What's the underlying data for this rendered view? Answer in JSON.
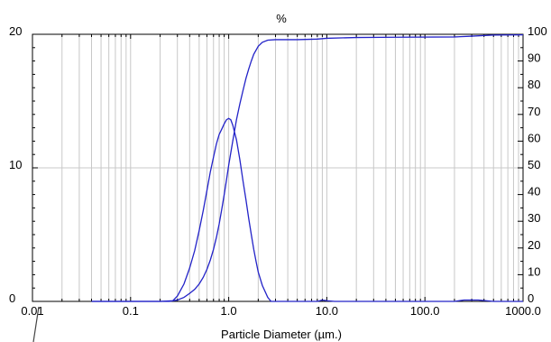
{
  "chart_data": {
    "type": "line",
    "title": "",
    "xlabel": "Particle Diameter (µm.)",
    "ylabel": "",
    "y2label": "%",
    "x_scale": "log",
    "xlim": [
      0.01,
      1000
    ],
    "ylim": [
      0,
      20
    ],
    "y2lim": [
      0,
      100
    ],
    "grid": true,
    "x_tick_labels": [
      "0.01",
      "0.1",
      "1.0",
      "10.0",
      "100.0",
      "1000.0"
    ],
    "y_tick_labels": [
      "0",
      "10",
      "20"
    ],
    "y2_tick_labels": [
      "0",
      "10",
      "20",
      "30",
      "40",
      "50",
      "60",
      "70",
      "80",
      "90",
      "100"
    ],
    "series_color": "#2323c8",
    "series": [
      {
        "axis": "left",
        "points": [
          [
            0.04,
            0
          ],
          [
            0.1,
            0
          ],
          [
            0.2,
            0
          ],
          [
            0.27,
            0.05
          ],
          [
            0.3,
            0.4
          ],
          [
            0.35,
            1.3
          ],
          [
            0.4,
            2.5
          ],
          [
            0.45,
            3.8
          ],
          [
            0.5,
            5.3
          ],
          [
            0.55,
            6.8
          ],
          [
            0.6,
            8.3
          ],
          [
            0.65,
            9.7
          ],
          [
            0.7,
            10.8
          ],
          [
            0.75,
            11.8
          ],
          [
            0.8,
            12.5
          ],
          [
            0.85,
            12.9
          ],
          [
            0.9,
            13.3
          ],
          [
            0.95,
            13.6
          ],
          [
            1.0,
            13.7
          ],
          [
            1.05,
            13.6
          ],
          [
            1.1,
            13.2
          ],
          [
            1.2,
            12.1
          ],
          [
            1.3,
            10.6
          ],
          [
            1.4,
            9.0
          ],
          [
            1.5,
            7.6
          ],
          [
            1.6,
            6.2
          ],
          [
            1.7,
            5.0
          ],
          [
            1.8,
            3.9
          ],
          [
            1.9,
            3.0
          ],
          [
            2.0,
            2.2
          ],
          [
            2.2,
            1.2
          ],
          [
            2.5,
            0.3
          ],
          [
            2.7,
            0
          ],
          [
            8,
            0
          ],
          [
            9,
            0.1
          ],
          [
            10,
            0.05
          ],
          [
            12,
            0
          ],
          [
            200,
            0
          ],
          [
            250,
            0.1
          ],
          [
            350,
            0.1
          ],
          [
            500,
            0
          ],
          [
            1000,
            0
          ]
        ]
      },
      {
        "axis": "right",
        "points": [
          [
            0.04,
            0
          ],
          [
            0.1,
            0
          ],
          [
            0.25,
            0
          ],
          [
            0.3,
            0.5
          ],
          [
            0.35,
            1.5
          ],
          [
            0.4,
            3.0
          ],
          [
            0.45,
            4.5
          ],
          [
            0.5,
            6.5
          ],
          [
            0.55,
            9.0
          ],
          [
            0.6,
            12.0
          ],
          [
            0.65,
            15.5
          ],
          [
            0.7,
            19.5
          ],
          [
            0.75,
            24.0
          ],
          [
            0.8,
            29.0
          ],
          [
            0.85,
            34.5
          ],
          [
            0.9,
            40.0
          ],
          [
            0.95,
            45.5
          ],
          [
            1.0,
            51.0
          ],
          [
            1.1,
            60.0
          ],
          [
            1.2,
            68.0
          ],
          [
            1.3,
            74.0
          ],
          [
            1.4,
            79.0
          ],
          [
            1.5,
            83.5
          ],
          [
            1.6,
            87.0
          ],
          [
            1.7,
            90.0
          ],
          [
            1.8,
            92.5
          ],
          [
            2.0,
            95.5
          ],
          [
            2.2,
            97.0
          ],
          [
            2.5,
            97.8
          ],
          [
            3.0,
            98.0
          ],
          [
            5.0,
            98.0
          ],
          [
            8.0,
            98.2
          ],
          [
            10.0,
            98.5
          ],
          [
            20.0,
            98.8
          ],
          [
            50.0,
            98.9
          ],
          [
            200.0,
            99.0
          ],
          [
            300.0,
            99.3
          ],
          [
            500.0,
            99.7
          ],
          [
            1000.0,
            99.8
          ]
        ]
      }
    ]
  }
}
